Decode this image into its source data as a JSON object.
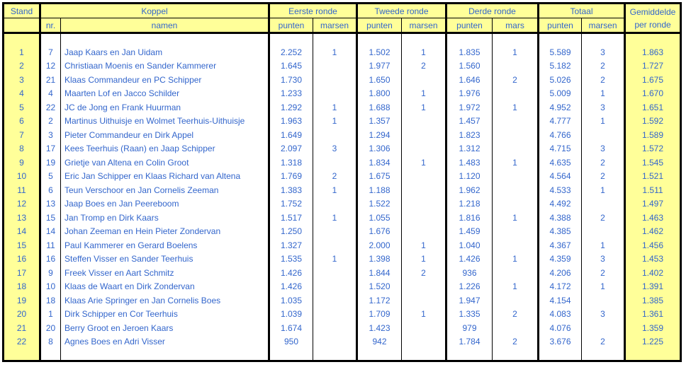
{
  "table": {
    "colors": {
      "header_and_highlight_bg": "#FFFF99",
      "text": "#3366CC",
      "border": "#000000",
      "body_bg": "#FFFFFF"
    },
    "groups": {
      "stand": "Stand",
      "koppel": "Koppel",
      "eerste_ronde": "Eerste ronde",
      "tweede_ronde": "Tweede ronde",
      "derde_ronde": "Derde ronde",
      "totaal": "Totaal",
      "gemiddelde_line1": "Gemiddelde",
      "gemiddelde_line2": "per ronde"
    },
    "sub": {
      "nr": "nr.",
      "namen": "namen",
      "eerste_punten": "punten",
      "eerste_marsen": "marsen",
      "tweede_punten": "punten",
      "tweede_marsen": "marsen",
      "derde_punten": "punten",
      "derde_mars": "mars",
      "totaal_punten": "punten",
      "totaal_marsen": "marsen"
    },
    "rows": [
      {
        "stand": "1",
        "nr": "7",
        "namen": "Jaap Kaars en Jan Uidam",
        "r1_punten": "2.252",
        "r1_marsen": "1",
        "r2_punten": "1.502",
        "r2_marsen": "1",
        "r3_punten": "1.835",
        "r3_mars": "1",
        "tot_punten": "5.589",
        "tot_marsen": "3",
        "gemiddelde": "1.863"
      },
      {
        "stand": "2",
        "nr": "12",
        "namen": "Christiaan Moenis en Sander Kammerer",
        "r1_punten": "1.645",
        "r1_marsen": "",
        "r2_punten": "1.977",
        "r2_marsen": "2",
        "r3_punten": "1.560",
        "r3_mars": "",
        "tot_punten": "5.182",
        "tot_marsen": "2",
        "gemiddelde": "1.727"
      },
      {
        "stand": "3",
        "nr": "21",
        "namen": "Klaas Commandeur en PC Schipper",
        "r1_punten": "1.730",
        "r1_marsen": "",
        "r2_punten": "1.650",
        "r2_marsen": "",
        "r3_punten": "1.646",
        "r3_mars": "2",
        "tot_punten": "5.026",
        "tot_marsen": "2",
        "gemiddelde": "1.675"
      },
      {
        "stand": "4",
        "nr": "4",
        "namen": "Maarten Lof en Jacco Schilder",
        "r1_punten": "1.233",
        "r1_marsen": "",
        "r2_punten": "1.800",
        "r2_marsen": "1",
        "r3_punten": "1.976",
        "r3_mars": "",
        "tot_punten": "5.009",
        "tot_marsen": "1",
        "gemiddelde": "1.670"
      },
      {
        "stand": "5",
        "nr": "22",
        "namen": "JC de Jong en Frank Huurman",
        "r1_punten": "1.292",
        "r1_marsen": "1",
        "r2_punten": "1.688",
        "r2_marsen": "1",
        "r3_punten": "1.972",
        "r3_mars": "1",
        "tot_punten": "4.952",
        "tot_marsen": "3",
        "gemiddelde": "1.651"
      },
      {
        "stand": "6",
        "nr": "2",
        "namen": "Martinus Uithuisje en Wolmet Teerhuis-Uithuisje",
        "r1_punten": "1.963",
        "r1_marsen": "1",
        "r2_punten": "1.357",
        "r2_marsen": "",
        "r3_punten": "1.457",
        "r3_mars": "",
        "tot_punten": "4.777",
        "tot_marsen": "1",
        "gemiddelde": "1.592"
      },
      {
        "stand": "7",
        "nr": "3",
        "namen": "Pieter Commandeur en Dirk Appel",
        "r1_punten": "1.649",
        "r1_marsen": "",
        "r2_punten": "1.294",
        "r2_marsen": "",
        "r3_punten": "1.823",
        "r3_mars": "",
        "tot_punten": "4.766",
        "tot_marsen": "",
        "gemiddelde": "1.589"
      },
      {
        "stand": "8",
        "nr": "17",
        "namen": "Kees Teerhuis (Raan) en Jaap Schipper",
        "r1_punten": "2.097",
        "r1_marsen": "3",
        "r2_punten": "1.306",
        "r2_marsen": "",
        "r3_punten": "1.312",
        "r3_mars": "",
        "tot_punten": "4.715",
        "tot_marsen": "3",
        "gemiddelde": "1.572"
      },
      {
        "stand": "9",
        "nr": "19",
        "namen": "Grietje van Altena en Colin Groot",
        "r1_punten": "1.318",
        "r1_marsen": "",
        "r2_punten": "1.834",
        "r2_marsen": "1",
        "r3_punten": "1.483",
        "r3_mars": "1",
        "tot_punten": "4.635",
        "tot_marsen": "2",
        "gemiddelde": "1.545"
      },
      {
        "stand": "10",
        "nr": "5",
        "namen": "Eric Jan Schipper en Klaas Richard van Altena",
        "r1_punten": "1.769",
        "r1_marsen": "2",
        "r2_punten": "1.675",
        "r2_marsen": "",
        "r3_punten": "1.120",
        "r3_mars": "",
        "tot_punten": "4.564",
        "tot_marsen": "2",
        "gemiddelde": "1.521"
      },
      {
        "stand": "11",
        "nr": "6",
        "namen": "Teun Verschoor en Jan Cornelis Zeeman",
        "r1_punten": "1.383",
        "r1_marsen": "1",
        "r2_punten": "1.188",
        "r2_marsen": "",
        "r3_punten": "1.962",
        "r3_mars": "",
        "tot_punten": "4.533",
        "tot_marsen": "1",
        "gemiddelde": "1.511"
      },
      {
        "stand": "12",
        "nr": "13",
        "namen": "Jaap Boes en Jan Peereboom",
        "r1_punten": "1.752",
        "r1_marsen": "",
        "r2_punten": "1.522",
        "r2_marsen": "",
        "r3_punten": "1.218",
        "r3_mars": "",
        "tot_punten": "4.492",
        "tot_marsen": "",
        "gemiddelde": "1.497"
      },
      {
        "stand": "13",
        "nr": "15",
        "namen": "Jan Tromp en Dirk Kaars",
        "r1_punten": "1.517",
        "r1_marsen": "1",
        "r2_punten": "1.055",
        "r2_marsen": "",
        "r3_punten": "1.816",
        "r3_mars": "1",
        "tot_punten": "4.388",
        "tot_marsen": "2",
        "gemiddelde": "1.463"
      },
      {
        "stand": "14",
        "nr": "14",
        "namen": "Johan Zeeman en Hein Pieter Zondervan",
        "r1_punten": "1.250",
        "r1_marsen": "",
        "r2_punten": "1.676",
        "r2_marsen": "",
        "r3_punten": "1.459",
        "r3_mars": "",
        "tot_punten": "4.385",
        "tot_marsen": "",
        "gemiddelde": "1.462"
      },
      {
        "stand": "15",
        "nr": "11",
        "namen": "Paul Kammerer en Gerard Boelens",
        "r1_punten": "1.327",
        "r1_marsen": "",
        "r2_punten": "2.000",
        "r2_marsen": "1",
        "r3_punten": "1.040",
        "r3_mars": "",
        "tot_punten": "4.367",
        "tot_marsen": "1",
        "gemiddelde": "1.456"
      },
      {
        "stand": "16",
        "nr": "16",
        "namen": "Steffen Visser en Sander Teerhuis",
        "r1_punten": "1.535",
        "r1_marsen": "1",
        "r2_punten": "1.398",
        "r2_marsen": "1",
        "r3_punten": "1.426",
        "r3_mars": "1",
        "tot_punten": "4.359",
        "tot_marsen": "3",
        "gemiddelde": "1.453"
      },
      {
        "stand": "17",
        "nr": "9",
        "namen": "Freek Visser en Aart Schmitz",
        "r1_punten": "1.426",
        "r1_marsen": "",
        "r2_punten": "1.844",
        "r2_marsen": "2",
        "r3_punten": "936",
        "r3_mars": "",
        "tot_punten": "4.206",
        "tot_marsen": "2",
        "gemiddelde": "1.402"
      },
      {
        "stand": "18",
        "nr": "10",
        "namen": "Klaas de Waart en Dirk Zondervan",
        "r1_punten": "1.426",
        "r1_marsen": "",
        "r2_punten": "1.520",
        "r2_marsen": "",
        "r3_punten": "1.226",
        "r3_mars": "1",
        "tot_punten": "4.172",
        "tot_marsen": "1",
        "gemiddelde": "1.391"
      },
      {
        "stand": "19",
        "nr": "18",
        "namen": "Klaas Arie Springer en Jan Cornelis Boes",
        "r1_punten": "1.035",
        "r1_marsen": "",
        "r2_punten": "1.172",
        "r2_marsen": "",
        "r3_punten": "1.947",
        "r3_mars": "",
        "tot_punten": "4.154",
        "tot_marsen": "",
        "gemiddelde": "1.385"
      },
      {
        "stand": "20",
        "nr": "1",
        "namen": "Dirk Schipper en Cor Teerhuis",
        "r1_punten": "1.039",
        "r1_marsen": "",
        "r2_punten": "1.709",
        "r2_marsen": "1",
        "r3_punten": "1.335",
        "r3_mars": "2",
        "tot_punten": "4.083",
        "tot_marsen": "3",
        "gemiddelde": "1.361"
      },
      {
        "stand": "21",
        "nr": "20",
        "namen": "Berry Groot en Jeroen Kaars",
        "r1_punten": "1.674",
        "r1_marsen": "",
        "r2_punten": "1.423",
        "r2_marsen": "",
        "r3_punten": "979",
        "r3_mars": "",
        "tot_punten": "4.076",
        "tot_marsen": "",
        "gemiddelde": "1.359"
      },
      {
        "stand": "22",
        "nr": "8",
        "namen": "Agnes Boes en Adri Visser",
        "r1_punten": "950",
        "r1_marsen": "",
        "r2_punten": "942",
        "r2_marsen": "",
        "r3_punten": "1.784",
        "r3_mars": "2",
        "tot_punten": "3.676",
        "tot_marsen": "2",
        "gemiddelde": "1.225"
      }
    ]
  }
}
